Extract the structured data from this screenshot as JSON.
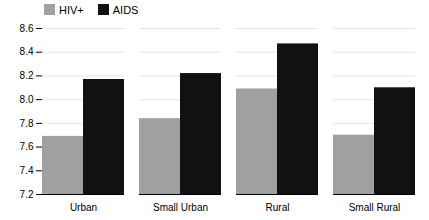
{
  "chart_data": {
    "type": "bar",
    "categories": [
      "Urban",
      "Small Urban",
      "Rural",
      "Small Rural"
    ],
    "series": [
      {
        "name": "HIV+",
        "color": "#a0a0a0",
        "values": [
          7.69,
          7.84,
          8.09,
          7.7
        ]
      },
      {
        "name": "AIDS",
        "color": "#111111",
        "values": [
          8.17,
          8.22,
          8.47,
          8.1
        ]
      }
    ],
    "ylim": [
      7.2,
      8.6
    ],
    "yticks": [
      7.2,
      7.4,
      7.6,
      7.8,
      {
        "value": 8.0,
        "label": "8.0"
      },
      8.2,
      8.4,
      8.6
    ],
    "grid": true,
    "legend": "upper left"
  }
}
